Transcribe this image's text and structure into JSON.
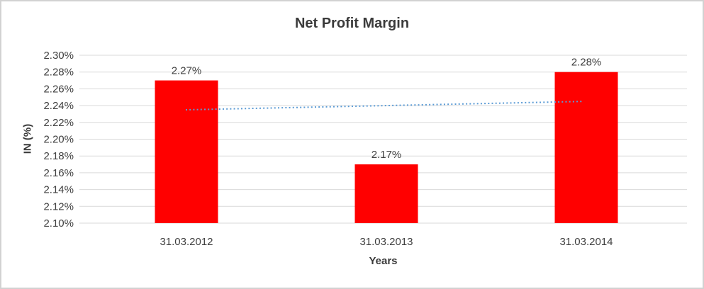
{
  "window": {
    "background": "#ffffff",
    "border_color": "#d2d2d2"
  },
  "chart_data": {
    "type": "bar",
    "title": "Net Profit Margin",
    "xlabel": "Years",
    "ylabel": "IN (%)",
    "categories": [
      "31.03.2012",
      "31.03.2013",
      "31.03.2014"
    ],
    "values": [
      2.27,
      2.17,
      2.28
    ],
    "value_labels": [
      "2.27%",
      "2.17%",
      "2.28%"
    ],
    "ylim": [
      2.1,
      2.3
    ],
    "ytick_step": 0.02,
    "ytick_labels": [
      "2.30%",
      "2.28%",
      "2.26%",
      "2.24%",
      "2.22%",
      "2.20%",
      "2.18%",
      "2.16%",
      "2.14%",
      "2.12%",
      "2.10%"
    ],
    "grid": true,
    "legend": "none",
    "bar_color": "#ff0000",
    "gridline_color": "#d9d9d9",
    "text_color": "#404040",
    "trendline": {
      "type": "linear",
      "style": "dotted",
      "color": "#5b9bd5",
      "start_value": 2.235,
      "end_value": 2.245
    }
  }
}
